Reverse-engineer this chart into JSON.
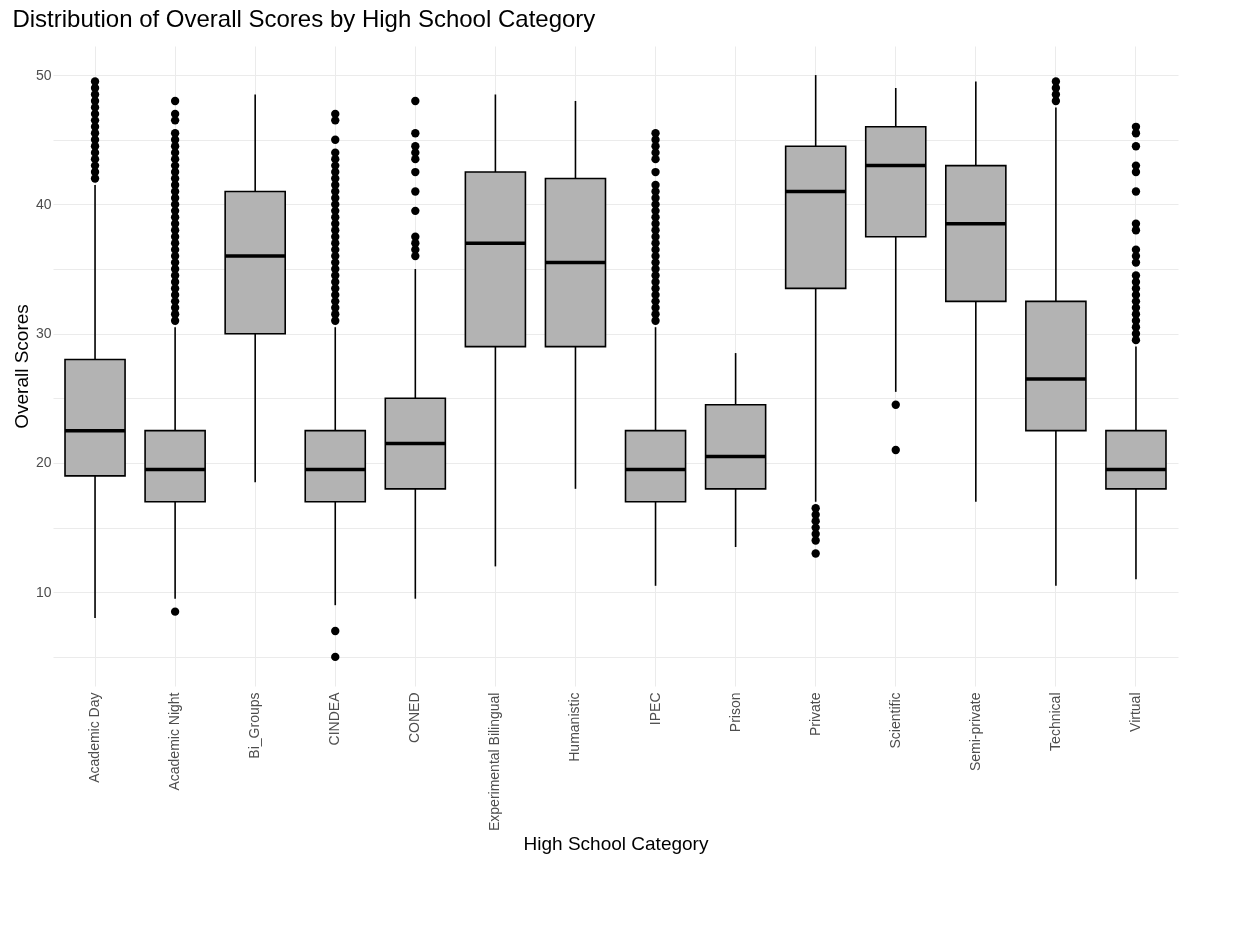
{
  "chart_data": {
    "type": "box",
    "title": "Distribution of Overall Scores by High School Category",
    "xlabel": "High School Category",
    "ylabel": "Overall Scores",
    "color": "#b3b3b3",
    "grid": true,
    "ylim": [
      2.75,
      52.25
    ],
    "yticks": [
      {
        "value": 5,
        "label": null
      },
      10,
      {
        "value": 15,
        "label": null
      },
      20,
      {
        "value": 25,
        "label": null
      },
      30,
      {
        "value": 35,
        "label": null
      },
      40,
      {
        "value": 45,
        "label": null
      },
      50
    ],
    "categories": [
      "Academic Day",
      "Academic Night",
      "Bi_Groups",
      "CINDEA",
      "CONED",
      "Experimental Bilingual",
      "Humanistic",
      "IPEC",
      "Prison",
      "Private",
      "Scientific",
      "Semi-private",
      "Technical",
      "Virtual"
    ],
    "boxes": [
      {
        "low": 8,
        "q1": 19,
        "median": 22.5,
        "q3": 28,
        "high": 41.5,
        "outliers": [
          42,
          42.5,
          43,
          43.5,
          44,
          44.5,
          45,
          45.5,
          46,
          46.5,
          47,
          47.5,
          48,
          48.5,
          49,
          49.5
        ]
      },
      {
        "low": 9.5,
        "q1": 17,
        "median": 19.5,
        "q3": 22.5,
        "high": 30.5,
        "outliers": [
          8.5,
          31,
          31.5,
          32,
          32.5,
          33,
          33.5,
          34,
          34.5,
          35,
          35.5,
          36,
          36.5,
          37,
          37.5,
          38,
          38.5,
          39,
          39.5,
          40,
          40.5,
          41,
          41.5,
          42,
          42.5,
          43,
          43.5,
          44,
          44.5,
          45,
          45.5,
          46.5,
          47,
          48
        ]
      },
      {
        "low": 18.5,
        "q1": 30,
        "median": 36,
        "q3": 41,
        "high": 48.5
      },
      {
        "low": 9,
        "q1": 17,
        "median": 19.5,
        "q3": 22.5,
        "high": 30.5,
        "outliers": [
          5,
          7,
          31,
          31.5,
          32,
          32.5,
          33,
          33.5,
          34,
          34.5,
          35,
          35.5,
          36,
          36.5,
          37,
          37.5,
          38,
          38.5,
          39,
          39.5,
          40,
          40.5,
          41,
          41.5,
          42,
          42.5,
          43,
          43.5,
          44,
          45,
          46.5,
          47
        ]
      },
      {
        "low": 9.5,
        "q1": 18,
        "median": 21.5,
        "q3": 25,
        "high": 35,
        "outliers": [
          36,
          36.5,
          37,
          37.5,
          39.5,
          41,
          42.5,
          43.5,
          44,
          44.5,
          45.5,
          48
        ]
      },
      {
        "low": 12,
        "q1": 29,
        "median": 37,
        "q3": 42.5,
        "high": 48.5
      },
      {
        "low": 18,
        "q1": 29,
        "median": 35.5,
        "q3": 42,
        "high": 48
      },
      {
        "low": 10.5,
        "q1": 17,
        "median": 19.5,
        "q3": 22.5,
        "high": 30.5,
        "outliers": [
          31,
          31.5,
          32,
          32.5,
          33,
          33.5,
          34,
          34.5,
          35,
          35.5,
          36,
          36.5,
          37,
          37.5,
          38,
          38.5,
          39,
          39.5,
          40,
          40.5,
          41,
          41.5,
          42.5,
          43.5,
          44,
          44.5,
          45,
          45.5
        ]
      },
      {
        "low": 13.5,
        "q1": 18,
        "median": 20.5,
        "q3": 24.5,
        "high": 28.5
      },
      {
        "low": 17,
        "q1": 33.5,
        "median": 41,
        "q3": 44.5,
        "high": 50,
        "outliers": [
          13,
          14,
          14.5,
          15,
          15.5,
          16,
          16.5
        ]
      },
      {
        "low": 25.5,
        "q1": 37.5,
        "median": 43,
        "q3": 46,
        "high": 49,
        "outliers": [
          21,
          24.5
        ]
      },
      {
        "low": 17,
        "q1": 32.5,
        "median": 38.5,
        "q3": 43,
        "high": 49.5
      },
      {
        "low": 10.5,
        "q1": 22.5,
        "median": 26.5,
        "q3": 32.5,
        "high": 47.5,
        "outliers": [
          48,
          48.5,
          49,
          49.5
        ]
      },
      {
        "low": 11,
        "q1": 18,
        "median": 19.5,
        "q3": 22.5,
        "high": 29,
        "outliers": [
          29.5,
          30,
          30.5,
          31,
          31.5,
          32,
          32.5,
          33,
          33.5,
          34,
          34.5,
          35.5,
          36,
          36.5,
          38,
          38.5,
          41,
          42.5,
          43,
          44.5,
          45.5,
          46
        ]
      }
    ]
  }
}
